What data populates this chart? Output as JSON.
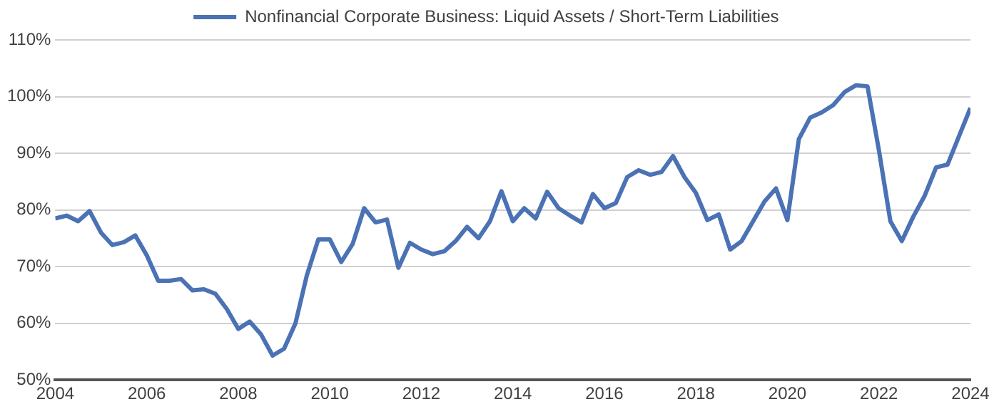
{
  "chart_data": {
    "type": "line",
    "x": [
      2004,
      2004.25,
      2004.5,
      2004.75,
      2005,
      2005.25,
      2005.5,
      2005.75,
      2006,
      2006.25,
      2006.5,
      2006.75,
      2007,
      2007.25,
      2007.5,
      2007.75,
      2008,
      2008.25,
      2008.5,
      2008.75,
      2009,
      2009.25,
      2009.5,
      2009.75,
      2010,
      2010.25,
      2010.5,
      2010.75,
      2011,
      2011.25,
      2011.5,
      2011.75,
      2012,
      2012.25,
      2012.5,
      2012.75,
      2013,
      2013.25,
      2013.5,
      2013.75,
      2014,
      2014.25,
      2014.5,
      2014.75,
      2015,
      2015.25,
      2015.5,
      2015.75,
      2016,
      2016.25,
      2016.5,
      2016.75,
      2017,
      2017.25,
      2017.5,
      2017.75,
      2018,
      2018.25,
      2018.5,
      2018.75,
      2019,
      2019.25,
      2019.5,
      2019.75,
      2020,
      2020.25,
      2020.5,
      2020.75,
      2021,
      2021.25,
      2021.5,
      2021.75,
      2022,
      2022.25,
      2022.5,
      2022.75,
      2023,
      2023.25,
      2023.5,
      2023.75,
      2024
    ],
    "series": [
      {
        "name": "Nonfinancial Corporate Business: Liquid Assets / Short-Term Liabilities",
        "color": "#4a72b4",
        "values": [
          78.5,
          79,
          78,
          79.8,
          76,
          73.8,
          74.3,
          75.5,
          72,
          67.5,
          67.5,
          67.8,
          65.8,
          66,
          65.2,
          62.5,
          59,
          60.3,
          58,
          54.3,
          55.5,
          60,
          68.5,
          74.8,
          74.8,
          70.8,
          74,
          80.3,
          77.8,
          78.3,
          69.8,
          74.2,
          73,
          72.2,
          72.7,
          74.5,
          77,
          75,
          78,
          83.3,
          78,
          80.3,
          78.5,
          83.2,
          80.3,
          79,
          77.8,
          82.8,
          80.3,
          81.2,
          85.8,
          87,
          86.2,
          86.7,
          89.5,
          85.8,
          83,
          78.2,
          79.2,
          73,
          74.5,
          78,
          81.5,
          83.8,
          78.2,
          92.5,
          96.3,
          97.2,
          98.5,
          100.8,
          102,
          101.8,
          90.5,
          78,
          74.5,
          78.8,
          82.5,
          87.5,
          88,
          93,
          98
        ]
      }
    ],
    "xlim": [
      2004,
      2024
    ],
    "xticks": [
      2004,
      2006,
      2008,
      2010,
      2012,
      2014,
      2016,
      2018,
      2020,
      2022,
      2024
    ],
    "ylim": [
      50,
      110
    ],
    "yticks": [
      {
        "value": 50,
        "label": "50%"
      },
      {
        "value": 60,
        "label": "60%"
      },
      {
        "value": 70,
        "label": "70%"
      },
      {
        "value": 80,
        "label": "80%"
      },
      {
        "value": 90,
        "label": "90%"
      },
      {
        "value": 100,
        "label": "100%"
      },
      {
        "value": 110,
        "label": "110%"
      }
    ],
    "grid": "y",
    "legend": "top",
    "marker": "none",
    "line_style": "solid"
  }
}
